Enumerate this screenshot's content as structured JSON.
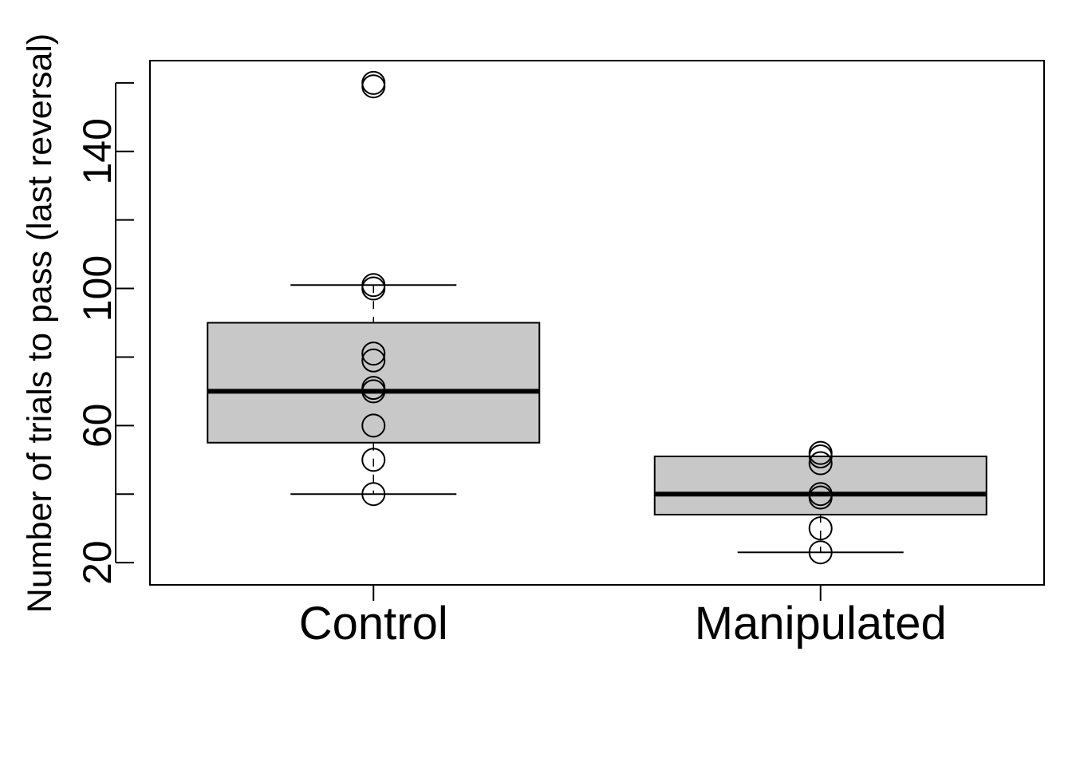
{
  "chart_data": {
    "type": "box",
    "ylabel": "Number of trials to pass (last reversal)",
    "xlabel": "",
    "title": "",
    "categories": [
      "Control",
      "Manipulated"
    ],
    "yticks": [
      20,
      40,
      60,
      80,
      100,
      120,
      140,
      160
    ],
    "ytick_labels_shown": [
      "20",
      "60",
      "100",
      "140"
    ],
    "ylim": [
      13.5,
      166.5
    ],
    "grid": false,
    "legend": "none",
    "box_fill": "#c8c8c8",
    "line_color": "#000000",
    "boxes": [
      {
        "name": "Control",
        "whisker_low": 40,
        "q1": 55,
        "median": 70,
        "q3": 90,
        "whisker_high": 101,
        "points": [
          40,
          50,
          60,
          70,
          71,
          79,
          81,
          100,
          101,
          159,
          160
        ]
      },
      {
        "name": "Manipulated",
        "whisker_low": 23,
        "q1": 34,
        "median": 40,
        "q3": 51,
        "whisker_high": 51,
        "points": [
          23,
          30,
          39,
          40,
          49,
          51,
          52
        ]
      }
    ]
  }
}
